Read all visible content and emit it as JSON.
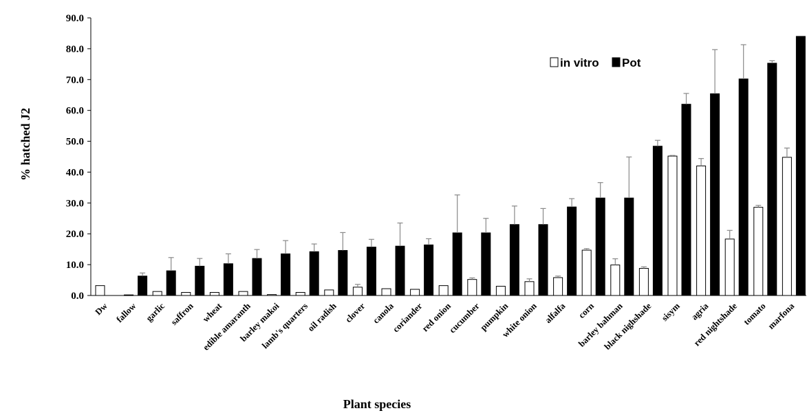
{
  "chart_data": {
    "type": "bar",
    "title": "",
    "xlabel": "Plant species",
    "ylabel": "% hatched J2",
    "ylim": [
      0,
      90
    ],
    "ytick_step": 10,
    "ytick_format": "0.0",
    "grid": false,
    "legend_position": "top-right",
    "categories": [
      "Dw",
      "fallow",
      "garlic",
      "saffron",
      "wheat",
      "edible amaranth",
      "barley makoi",
      "lamb's quarters",
      "oil radish",
      "clover",
      "canola",
      "coriander",
      "red onion",
      "cucumber",
      "pumpkin",
      "white onion",
      "alfalfa",
      "corn",
      "barley bahman",
      "black nighshade",
      "sisym",
      "agria",
      "red nightshade",
      "tomato",
      "marfona"
    ],
    "series": [
      {
        "name": "in vitro",
        "color": "#ffffff",
        "values": [
          3.2,
          0.2,
          1.3,
          1.0,
          1.0,
          1.3,
          0.3,
          1.0,
          1.8,
          2.7,
          2.2,
          2.0,
          3.2,
          5.2,
          3.0,
          4.5,
          5.8,
          14.7,
          9.9,
          8.8,
          45.2,
          42.0,
          18.3,
          28.6,
          44.8
        ],
        "errors": [
          0,
          0,
          0,
          0,
          0,
          0,
          0,
          0,
          0,
          0.9,
          0,
          0,
          0,
          0.5,
          0,
          0.9,
          0.5,
          0.5,
          2.0,
          0.5,
          0.2,
          2.4,
          2.8,
          0.6,
          3.0
        ]
      },
      {
        "name": "Pot",
        "color": "#000000",
        "values": [
          0,
          6.3,
          8.0,
          9.5,
          10.3,
          12.0,
          13.5,
          14.2,
          14.6,
          15.7,
          16.0,
          16.4,
          20.3,
          20.3,
          23.0,
          23.0,
          28.7,
          31.6,
          31.6,
          48.4,
          62.0,
          65.4,
          70.2,
          75.3,
          84.0
        ],
        "errors": [
          0,
          1.0,
          4.3,
          2.5,
          3.2,
          2.9,
          4.3,
          2.5,
          5.8,
          2.5,
          7.5,
          2.0,
          12.3,
          4.7,
          6.0,
          5.2,
          2.7,
          5.0,
          13.3,
          1.9,
          3.5,
          14.3,
          11.1,
          0.8,
          0
        ]
      }
    ]
  }
}
